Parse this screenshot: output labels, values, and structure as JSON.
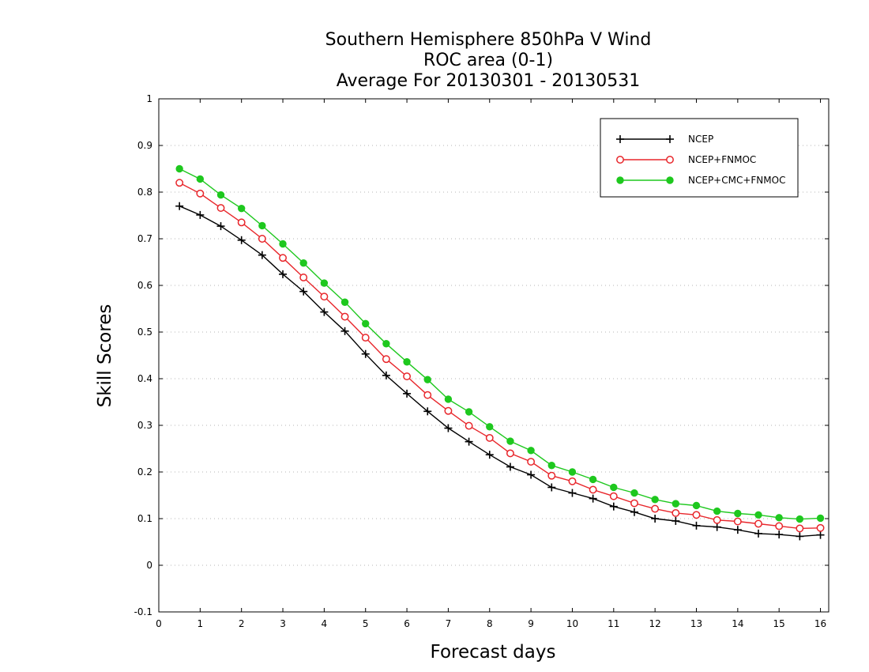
{
  "chart_data": {
    "type": "line",
    "title": [
      "Southern Hemisphere 850hPa V Wind",
      "ROC area (0-1)",
      "Average For 20130301 - 20130531"
    ],
    "xlabel": "Forecast days",
    "ylabel": "Skill Scores",
    "xlim": [
      0,
      16.2
    ],
    "ylim": [
      -0.1,
      1
    ],
    "xticks": [
      0,
      1,
      2,
      3,
      4,
      5,
      6,
      7,
      8,
      9,
      10,
      11,
      12,
      13,
      14,
      15,
      16
    ],
    "yticks": [
      -0.1,
      0,
      0.1,
      0.2,
      0.3,
      0.4,
      0.5,
      0.6,
      0.7,
      0.8,
      0.9,
      1
    ],
    "ytick_labels": [
      "-0.1",
      "0",
      "0.1",
      "0.2",
      "0.3",
      "0.4",
      "0.5",
      "0.6",
      "0.7",
      "0.8",
      "0.9",
      "1"
    ],
    "grid": "horizontal dotted",
    "legend_position": "top-right",
    "x": [
      0.5,
      1,
      1.5,
      2,
      2.5,
      3,
      3.5,
      4,
      4.5,
      5,
      5.5,
      6,
      6.5,
      7,
      7.5,
      8,
      8.5,
      9,
      9.5,
      10,
      10.5,
      11,
      11.5,
      12,
      12.5,
      13,
      13.5,
      14,
      14.5,
      15,
      15.5,
      16
    ],
    "series": [
      {
        "name": "NCEP",
        "color": "#000000",
        "marker": "plus",
        "values": [
          0.77,
          0.751,
          0.727,
          0.697,
          0.665,
          0.624,
          0.587,
          0.543,
          0.502,
          0.453,
          0.407,
          0.368,
          0.33,
          0.294,
          0.265,
          0.237,
          0.211,
          0.194,
          0.167,
          0.155,
          0.143,
          0.126,
          0.114,
          0.1,
          0.095,
          0.085,
          0.082,
          0.076,
          0.068,
          0.066,
          0.062,
          0.065
        ]
      },
      {
        "name": "NCEP+FNMOC",
        "color": "#e8262b",
        "marker": "open-circle",
        "values": [
          0.82,
          0.797,
          0.766,
          0.735,
          0.7,
          0.659,
          0.617,
          0.576,
          0.533,
          0.488,
          0.442,
          0.405,
          0.365,
          0.331,
          0.299,
          0.273,
          0.24,
          0.222,
          0.192,
          0.18,
          0.162,
          0.148,
          0.133,
          0.121,
          0.112,
          0.108,
          0.097,
          0.094,
          0.089,
          0.084,
          0.079,
          0.08
        ]
      },
      {
        "name": "NCEP+CMC+FNMOC",
        "color": "#1ec81e",
        "marker": "filled-circle",
        "values": [
          0.85,
          0.828,
          0.794,
          0.765,
          0.728,
          0.689,
          0.648,
          0.605,
          0.564,
          0.518,
          0.475,
          0.436,
          0.398,
          0.356,
          0.329,
          0.297,
          0.266,
          0.246,
          0.214,
          0.2,
          0.184,
          0.167,
          0.155,
          0.141,
          0.132,
          0.128,
          0.116,
          0.111,
          0.108,
          0.102,
          0.099,
          0.101
        ]
      }
    ]
  }
}
